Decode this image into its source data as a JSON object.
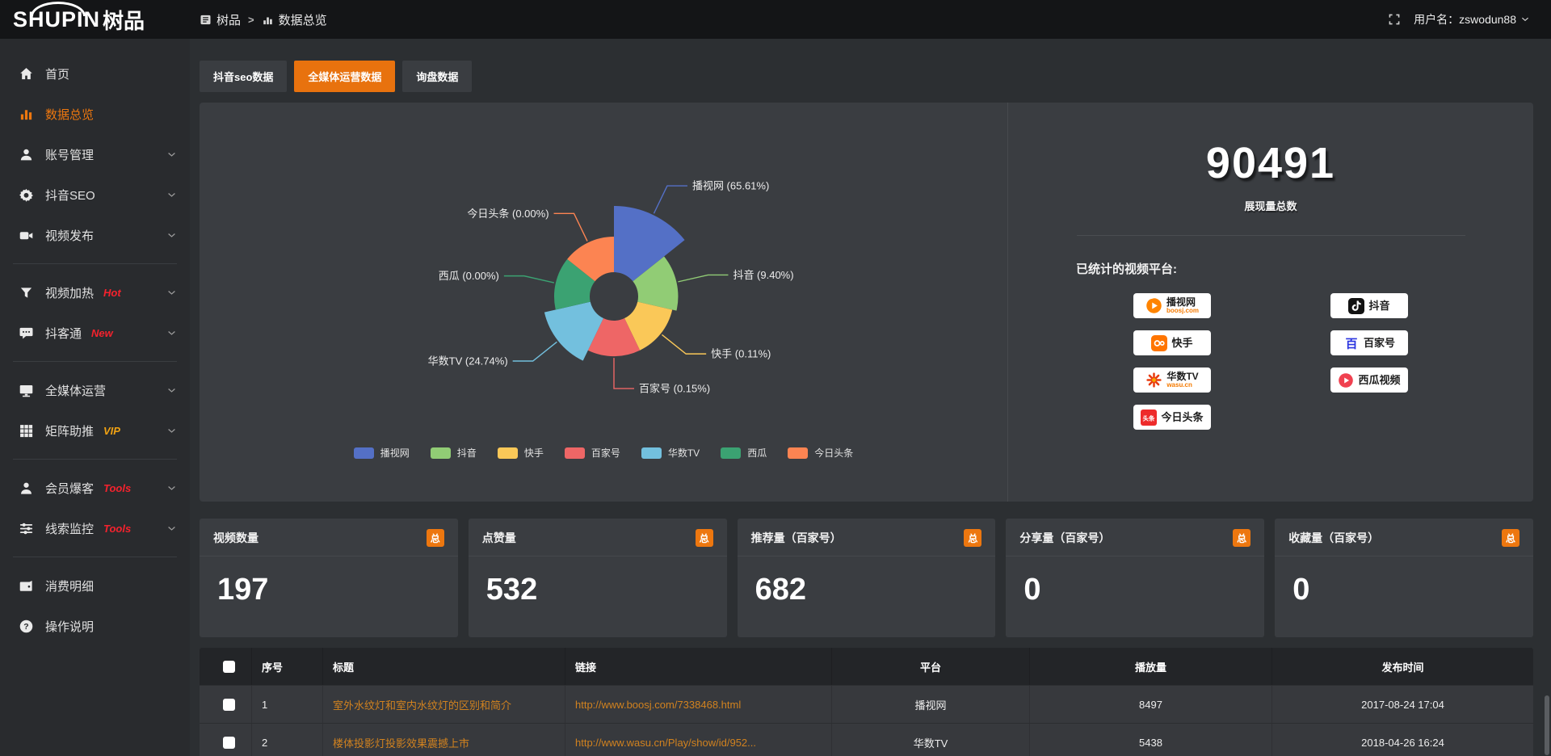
{
  "topbar": {
    "logo_main": "SHUPIN",
    "logo_sub": "树品",
    "breadcrumb": [
      {
        "label": "树品"
      },
      {
        "label": "数据总览"
      }
    ],
    "breadcrumb_separator": ">",
    "username_label": "用户名：zswodun88"
  },
  "sidebar": {
    "items": [
      {
        "id": "home",
        "label": "首页",
        "icon": "home"
      },
      {
        "id": "data-overview",
        "label": "数据总览",
        "icon": "chart",
        "active": true
      },
      {
        "id": "account-manage",
        "label": "账号管理",
        "icon": "user",
        "chevron": true
      },
      {
        "id": "douyin-seo",
        "label": "抖音SEO",
        "icon": "gear",
        "chevron": true
      },
      {
        "id": "video-publish",
        "label": "视频发布",
        "icon": "video",
        "chevron": true
      },
      {
        "divider": true
      },
      {
        "id": "video-heat",
        "label": "视频加热",
        "tag": "Hot",
        "tagColor": "red",
        "icon": "funnel",
        "chevron": true
      },
      {
        "id": "douketong",
        "label": "抖客通",
        "tag": "New",
        "tagColor": "red",
        "icon": "chat",
        "chevron": true
      },
      {
        "divider": true
      },
      {
        "id": "media-ops",
        "label": "全媒体运营",
        "icon": "monitor",
        "chevron": true
      },
      {
        "id": "matrix-boost",
        "label": "矩阵助推",
        "tag": "VIP",
        "tagColor": "gold",
        "icon": "grid",
        "chevron": true
      },
      {
        "divider": true
      },
      {
        "id": "member-baoke",
        "label": "会员爆客",
        "tag": "Tools",
        "tagColor": "red",
        "icon": "member",
        "chevron": true
      },
      {
        "id": "clue-monitor",
        "label": "线索监控",
        "tag": "Tools",
        "tagColor": "red",
        "icon": "sliders",
        "chevron": true
      },
      {
        "divider": true
      },
      {
        "id": "consumption-detail",
        "label": "消费明细",
        "icon": "wallet"
      },
      {
        "id": "help",
        "label": "操作说明",
        "icon": "help"
      }
    ]
  },
  "tabs": [
    {
      "id": "douyin-seo-data",
      "label": "抖音seo数据",
      "active": false
    },
    {
      "id": "media-ops-data",
      "label": "全媒体运营数据",
      "active": true
    },
    {
      "id": "inquiry-data",
      "label": "询盘数据",
      "active": false
    }
  ],
  "chart_data": {
    "type": "pie",
    "subtype": "nightingale-rose-donut",
    "series": [
      {
        "name": "播视网",
        "value": 65.61
      },
      {
        "name": "抖音",
        "value": 9.4
      },
      {
        "name": "快手",
        "value": 0.11
      },
      {
        "name": "百家号",
        "value": 0.15
      },
      {
        "name": "华数TV",
        "value": 24.74
      },
      {
        "name": "西瓜",
        "value": 0.0
      },
      {
        "name": "今日头条",
        "value": 0.0
      }
    ],
    "unit": "%",
    "colors": [
      "#5470c6",
      "#91cc75",
      "#fac858",
      "#ee6666",
      "#73c0de",
      "#3ba272",
      "#fc8452"
    ],
    "legend": [
      "播视网",
      "抖音",
      "快手",
      "百家号",
      "华数TV",
      "西瓜",
      "今日头条"
    ],
    "legend_position": "bottom"
  },
  "summary": {
    "total_value": "90491",
    "total_label": "展现量总数",
    "platforms_label": "已统计的视频平台:",
    "platforms": [
      {
        "id": "boosj",
        "name": "播视网",
        "sub": "boosj.com",
        "icon": "boosj"
      },
      {
        "id": "douyin",
        "name": "抖音",
        "icon": "douyin"
      },
      {
        "id": "kuaishou",
        "name": "快手",
        "icon": "kuaishou"
      },
      {
        "id": "baijiahao",
        "name": "百家号",
        "icon": "baijiahao"
      },
      {
        "id": "wasu",
        "name": "华数TV",
        "sub": "wasu.cn",
        "icon": "wasu"
      },
      {
        "id": "xigua",
        "name": "西瓜视频",
        "icon": "xigua"
      },
      {
        "id": "toutiao",
        "name": "今日头条",
        "icon": "toutiao"
      }
    ]
  },
  "stats_cards": [
    {
      "id": "video-count",
      "title": "视频数量",
      "badge": "总",
      "value": "197"
    },
    {
      "id": "like-count",
      "title": "点赞量",
      "badge": "总",
      "value": "532"
    },
    {
      "id": "recommend-count",
      "title": "推荐量（百家号）",
      "badge": "总",
      "value": "682"
    },
    {
      "id": "share-count",
      "title": "分享量（百家号）",
      "badge": "总",
      "value": "0"
    },
    {
      "id": "favorite-count",
      "title": "收藏量（百家号）",
      "badge": "总",
      "value": "0"
    }
  ],
  "table": {
    "headers": [
      "序号",
      "标题",
      "链接",
      "平台",
      "播放量",
      "发布时间"
    ],
    "rows": [
      {
        "seq": "1",
        "title": "室外水纹灯和室内水纹灯的区别和简介",
        "link": "http://www.boosj.com/7338468.html",
        "platform": "播视网",
        "plays": "8497",
        "time": "2017-08-24 17:04"
      },
      {
        "seq": "2",
        "title": "楼体投影灯投影效果震撼上市",
        "link": "http://www.wasu.cn/Play/show/id/952...",
        "platform": "华数TV",
        "plays": "5438",
        "time": "2018-04-26 16:24"
      }
    ]
  },
  "theme": {
    "accent_orange": "#ED770F",
    "tab_active_orange": "#E8720E",
    "link_orange": "#D1821F",
    "tag_red": "#F5222D",
    "tag_gold": "#F0A213"
  }
}
